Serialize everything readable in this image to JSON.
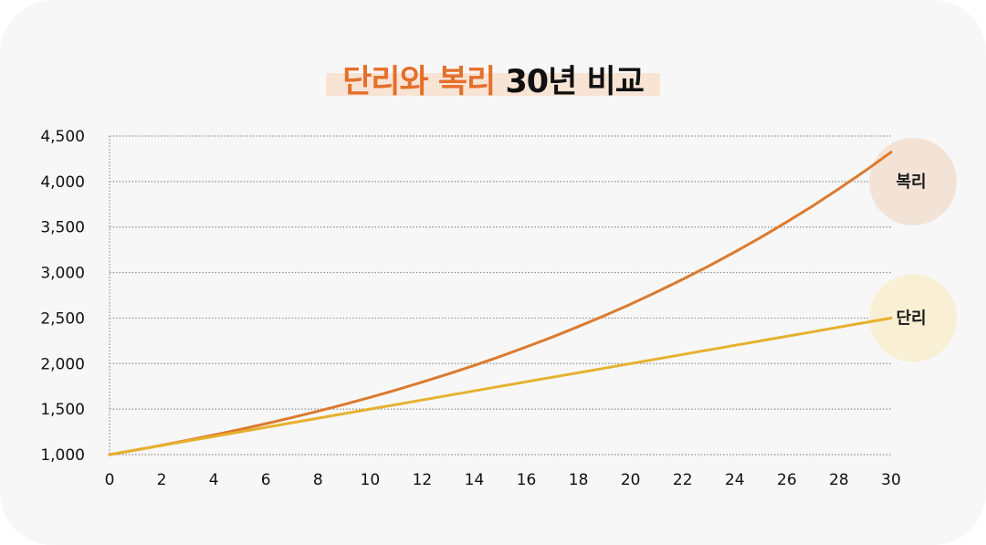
{
  "title": {
    "accent_text": "단리와 복리",
    "rest_text": "30년 비교"
  },
  "colors": {
    "compound": "#dc7a2e",
    "simple": "#e6b12e",
    "compound_bubble": "#f3e3d6",
    "simple_bubble": "#f8efd4",
    "grid": "#8f8f8f",
    "title_accent": "#e56f2c",
    "title_highlight": "#f8e4d5"
  },
  "chart_data": {
    "type": "line",
    "title": "단리와 복리 30년 비교",
    "xlabel": "",
    "ylabel": "",
    "xlim": [
      0,
      30
    ],
    "ylim": [
      1000,
      4500
    ],
    "x_ticks": [
      0,
      2,
      4,
      6,
      8,
      10,
      12,
      14,
      16,
      18,
      20,
      22,
      24,
      26,
      28,
      30
    ],
    "y_ticks": [
      1000,
      1500,
      2000,
      2500,
      3000,
      3500,
      4000,
      4500
    ],
    "y_tick_labels": [
      "1,000",
      "1,500",
      "2,000",
      "2,500",
      "3,000",
      "3,500",
      "4,000",
      "4,500"
    ],
    "x": [
      0,
      1,
      2,
      3,
      4,
      5,
      6,
      7,
      8,
      9,
      10,
      11,
      12,
      13,
      14,
      15,
      16,
      17,
      18,
      19,
      20,
      21,
      22,
      23,
      24,
      25,
      26,
      27,
      28,
      29,
      30
    ],
    "series": [
      {
        "name": "복리",
        "key": "compound",
        "values": [
          1000,
          1050,
          1103,
          1158,
          1216,
          1276,
          1340,
          1407,
          1477,
          1551,
          1629,
          1710,
          1796,
          1886,
          1980,
          2079,
          2183,
          2292,
          2407,
          2527,
          2653,
          2786,
          2925,
          3072,
          3225,
          3386,
          3556,
          3733,
          3920,
          4116,
          4322
        ]
      },
      {
        "name": "단리",
        "key": "simple",
        "values": [
          1000,
          1050,
          1100,
          1150,
          1200,
          1250,
          1300,
          1350,
          1400,
          1450,
          1500,
          1550,
          1600,
          1650,
          1700,
          1750,
          1800,
          1850,
          1900,
          1950,
          2000,
          2050,
          2100,
          2150,
          2200,
          2250,
          2300,
          2350,
          2400,
          2450,
          2500
        ]
      }
    ],
    "grid": true,
    "legend": "end-of-line bubbles"
  }
}
